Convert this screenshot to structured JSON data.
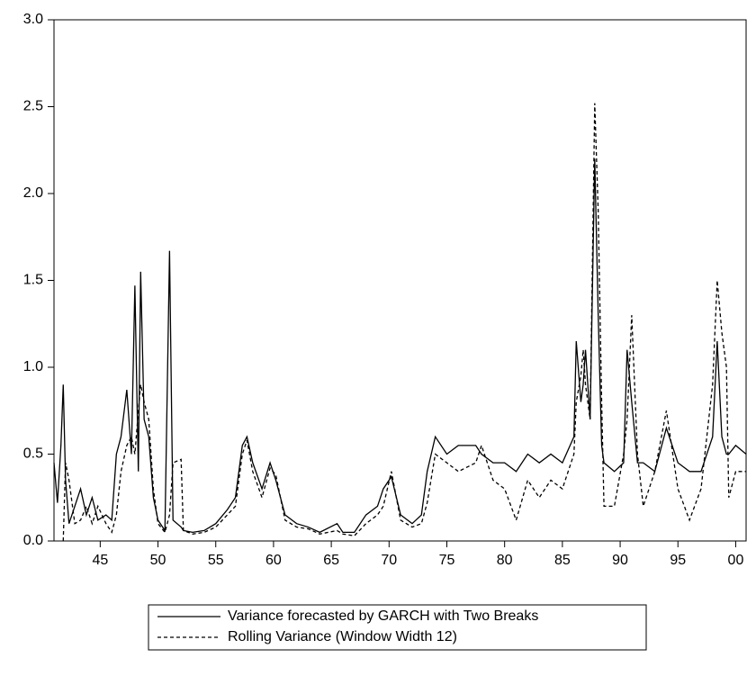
{
  "chart_data": {
    "type": "line",
    "x": [
      1941.0,
      1941.3,
      1941.6,
      1941.8,
      1942.0,
      1942.3,
      1942.8,
      1943.3,
      1943.8,
      1944.3,
      1944.8,
      1945.5,
      1946.0,
      1946.4,
      1946.8,
      1947.3,
      1947.7,
      1948.0,
      1948.3,
      1948.5,
      1948.8,
      1949.2,
      1949.6,
      1950.0,
      1950.6,
      1951.0,
      1951.3,
      1952.0,
      1952.2,
      1953.0,
      1954.0,
      1955.0,
      1956.0,
      1956.7,
      1957.3,
      1957.7,
      1958.2,
      1959.0,
      1959.7,
      1960.2,
      1961.0,
      1962.0,
      1963.0,
      1964.0,
      1965.5,
      1966.0,
      1967.0,
      1968.0,
      1969.0,
      1969.5,
      1970.2,
      1971.0,
      1972.0,
      1972.8,
      1973.3,
      1974.0,
      1975.0,
      1976.0,
      1977.5,
      1978.0,
      1979.0,
      1980.0,
      1981.0,
      1982.0,
      1983.0,
      1984.0,
      1985.0,
      1986.0,
      1986.2,
      1986.6,
      1986.8,
      1987.0,
      1987.4,
      1987.8,
      1988.1,
      1988.4,
      1988.6,
      1989.5,
      1990.3,
      1990.6,
      1991.0,
      1991.5,
      1992.0,
      1993.0,
      1994.0,
      1995.0,
      1996.0,
      1997.0,
      1998.0,
      1998.4,
      1998.8,
      1999.2,
      1999.4,
      2000.0,
      2000.9
    ],
    "series": [
      {
        "name": "Variance forecasted by GARCH with Two Breaks",
        "color": "#000000",
        "linestyle": "solid",
        "values": [
          0.45,
          0.22,
          0.55,
          0.9,
          0.35,
          0.1,
          0.2,
          0.3,
          0.15,
          0.25,
          0.12,
          0.15,
          0.12,
          0.5,
          0.6,
          0.87,
          0.5,
          1.47,
          0.4,
          1.55,
          0.7,
          0.6,
          0.25,
          0.12,
          0.06,
          1.67,
          0.12,
          0.08,
          0.06,
          0.05,
          0.06,
          0.1,
          0.18,
          0.25,
          0.55,
          0.6,
          0.45,
          0.3,
          0.45,
          0.35,
          0.15,
          0.1,
          0.08,
          0.05,
          0.1,
          0.05,
          0.05,
          0.15,
          0.2,
          0.3,
          0.37,
          0.15,
          0.1,
          0.15,
          0.4,
          0.6,
          0.5,
          0.55,
          0.55,
          0.5,
          0.45,
          0.45,
          0.4,
          0.5,
          0.45,
          0.5,
          0.45,
          0.6,
          1.15,
          0.8,
          0.9,
          1.1,
          0.7,
          2.2,
          1.3,
          0.55,
          0.45,
          0.4,
          0.45,
          1.1,
          0.8,
          0.45,
          0.45,
          0.4,
          0.65,
          0.45,
          0.4,
          0.4,
          0.6,
          1.15,
          0.6,
          0.5,
          0.5,
          0.55,
          0.5
        ]
      },
      {
        "name": "Rolling Variance (Window Width 12)",
        "color": "#000000",
        "linestyle": "dashed",
        "values": [
          null,
          null,
          null,
          0.0,
          0.45,
          0.35,
          0.1,
          0.12,
          0.2,
          0.1,
          0.2,
          0.1,
          0.05,
          0.15,
          0.4,
          0.55,
          0.6,
          0.5,
          0.75,
          0.9,
          0.8,
          0.7,
          0.3,
          0.1,
          0.05,
          0.15,
          0.45,
          0.47,
          0.06,
          0.04,
          0.05,
          0.08,
          0.15,
          0.2,
          0.5,
          0.58,
          0.4,
          0.25,
          0.42,
          0.38,
          0.12,
          0.08,
          0.07,
          0.04,
          0.06,
          0.04,
          0.03,
          0.1,
          0.15,
          0.2,
          0.4,
          0.12,
          0.08,
          0.1,
          0.22,
          0.5,
          0.45,
          0.4,
          0.45,
          0.55,
          0.35,
          0.3,
          0.12,
          0.35,
          0.25,
          0.35,
          0.3,
          0.5,
          0.8,
          0.95,
          1.1,
          0.9,
          0.7,
          2.52,
          1.9,
          0.8,
          0.2,
          0.2,
          0.5,
          0.7,
          1.3,
          0.5,
          0.2,
          0.4,
          0.75,
          0.3,
          0.12,
          0.3,
          0.9,
          1.5,
          1.2,
          1.0,
          0.25,
          0.4,
          0.4
        ]
      }
    ],
    "xlim": [
      1941.0,
      2000.9
    ],
    "xticks": [
      {
        "value": 1945,
        "label": "45"
      },
      {
        "value": 1950,
        "label": "50"
      },
      {
        "value": 1955,
        "label": "55"
      },
      {
        "value": 1960,
        "label": "60"
      },
      {
        "value": 1965,
        "label": "65"
      },
      {
        "value": 1970,
        "label": "70"
      },
      {
        "value": 1975,
        "label": "75"
      },
      {
        "value": 1980,
        "label": "80"
      },
      {
        "value": 1985,
        "label": "85"
      },
      {
        "value": 1990,
        "label": "90"
      },
      {
        "value": 1995,
        "label": "95"
      },
      {
        "value": 2000,
        "label": "00"
      }
    ],
    "ylim": [
      0,
      3
    ],
    "yticks": [
      {
        "value": 0,
        "label": "0.0"
      },
      0.5,
      {
        "value": 1,
        "label": "1.0"
      },
      1.5,
      {
        "value": 2,
        "label": "2.0"
      },
      2.5,
      {
        "value": 3,
        "label": "3.0"
      }
    ],
    "grid": false
  }
}
